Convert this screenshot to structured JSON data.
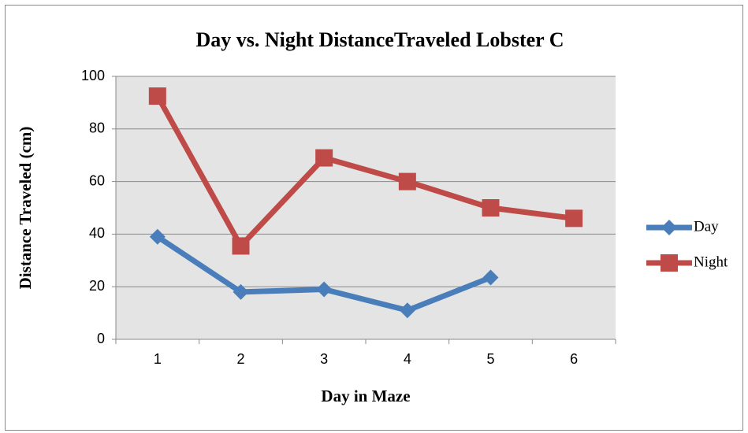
{
  "chart_data": {
    "type": "line",
    "title": "Day vs. Night DistanceTraveled Lobster C",
    "x_label": "Day in Maze",
    "y_label": "Distance Traveled (cm)",
    "categories": [
      "1",
      "2",
      "3",
      "4",
      "5",
      "6"
    ],
    "series": [
      {
        "name": "Day",
        "color": "#4a7ebb",
        "marker": "diamond",
        "values": [
          39,
          18,
          19,
          11,
          23.5,
          null
        ]
      },
      {
        "name": "Night",
        "color": "#be4b48",
        "marker": "square",
        "values": [
          92.5,
          35.5,
          69,
          60,
          50,
          46
        ]
      }
    ],
    "ylim": [
      0,
      100
    ],
    "yticks": [
      0,
      20,
      40,
      60,
      80,
      100
    ],
    "grid": true,
    "legend": "right"
  }
}
